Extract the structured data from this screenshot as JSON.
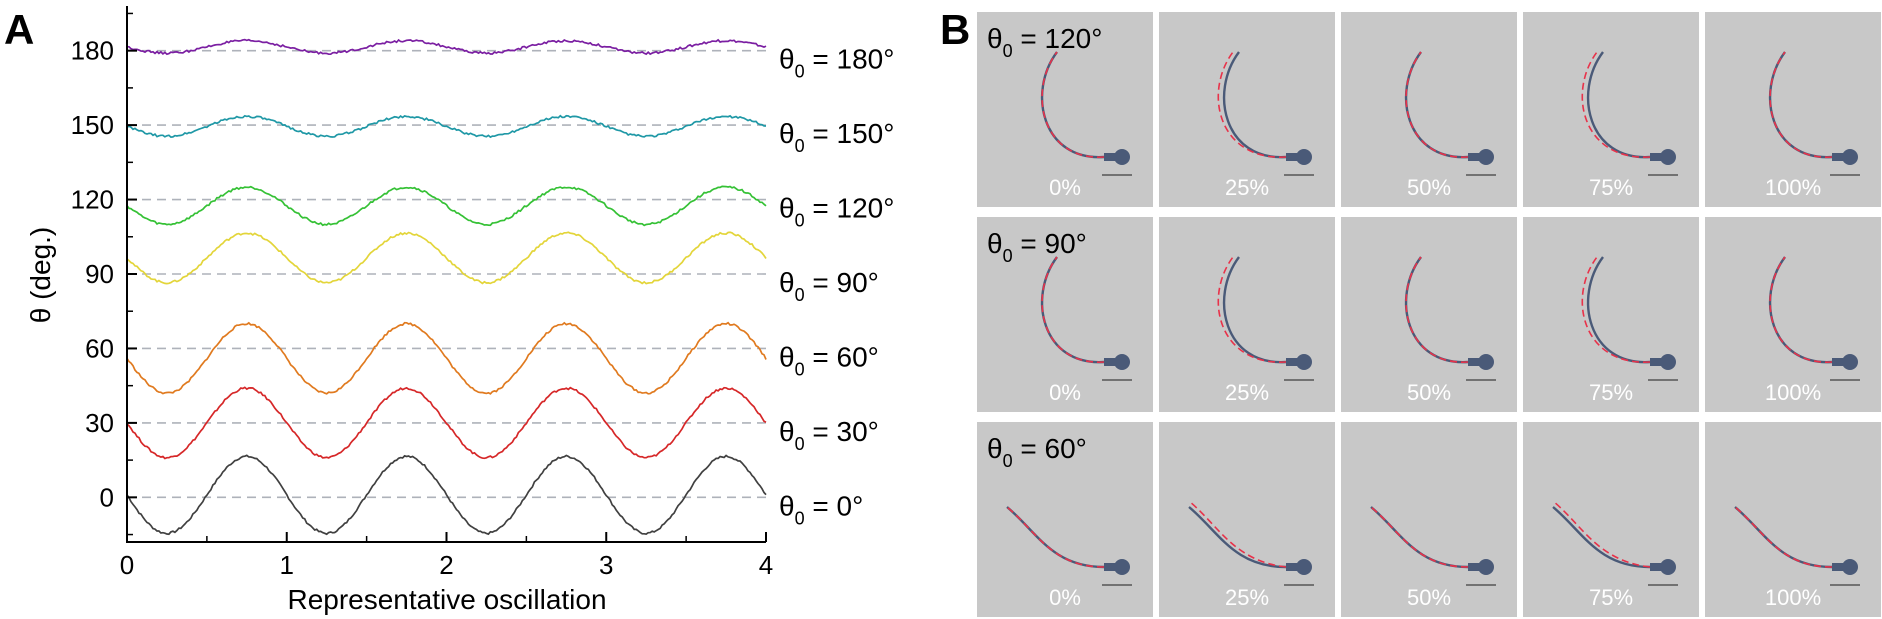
{
  "panels": {
    "a_letter": "A",
    "b_letter": "B"
  },
  "chart_data": {
    "type": "line",
    "title": "",
    "xlabel": "Representative oscillation",
    "ylabel": "θ (deg.)",
    "xlim": [
      0,
      4
    ],
    "ylim": [
      -18,
      198
    ],
    "xticks": [
      0,
      1,
      2,
      3,
      4
    ],
    "yticks": [
      0,
      30,
      60,
      90,
      120,
      150,
      180
    ],
    "grid": false,
    "reference_lines": [
      0,
      30,
      60,
      90,
      120,
      150,
      180
    ],
    "period": 1,
    "peak_phase": 0.75,
    "series": [
      {
        "name": "θ0 = 0°",
        "label_main": "θ",
        "label_sub": "0",
        "label_rest": " = 0°",
        "theta0": 0,
        "mean": 1,
        "amplitude": 15.5,
        "color": "#404040"
      },
      {
        "name": "θ0 = 30°",
        "label_main": "θ",
        "label_sub": "0",
        "label_rest": " = 30°",
        "theta0": 30,
        "mean": 30,
        "amplitude": 14,
        "color": "#d62728"
      },
      {
        "name": "θ0 = 60°",
        "label_main": "θ",
        "label_sub": "0",
        "label_rest": " = 60°",
        "theta0": 60,
        "mean": 56,
        "amplitude": 14,
        "color": "#e07a1f"
      },
      {
        "name": "θ0 = 90°",
        "label_main": "θ",
        "label_sub": "0",
        "label_rest": " = 90°",
        "theta0": 90,
        "mean": 96.5,
        "amplitude": 10,
        "color": "#e3d53a"
      },
      {
        "name": "θ0 = 120°",
        "label_main": "θ",
        "label_sub": "0",
        "label_rest": " = 120°",
        "theta0": 120,
        "mean": 117.5,
        "amplitude": 7.5,
        "color": "#35c135"
      },
      {
        "name": "θ0 = 150°",
        "label_main": "θ",
        "label_sub": "0",
        "label_rest": " = 150°",
        "theta0": 150,
        "mean": 149.5,
        "amplitude": 4,
        "color": "#1f98a6"
      },
      {
        "name": "θ0 = 180°",
        "label_main": "θ",
        "label_sub": "0",
        "label_rest": " = 180°",
        "theta0": 180,
        "mean": 181.5,
        "amplitude": 2.5,
        "color": "#7b1fa2"
      }
    ]
  },
  "snapshots": {
    "rows": [
      {
        "label_main": "θ",
        "label_sub": "0",
        "label_rest": " = 120°",
        "shape": "hook"
      },
      {
        "label_main": "θ",
        "label_sub": "0",
        "label_rest": " = 90°",
        "shape": "hook"
      },
      {
        "label_main": "θ",
        "label_sub": "0",
        "label_rest": " = 60°",
        "shape": "sweep"
      }
    ],
    "columns": [
      "0%",
      "25%",
      "50%",
      "75%",
      "100%"
    ],
    "colors": {
      "tile": "#c8c8c8",
      "filament": "#4a5a78",
      "overlay": "#e8324a",
      "tile_text": "#ffffff"
    }
  }
}
